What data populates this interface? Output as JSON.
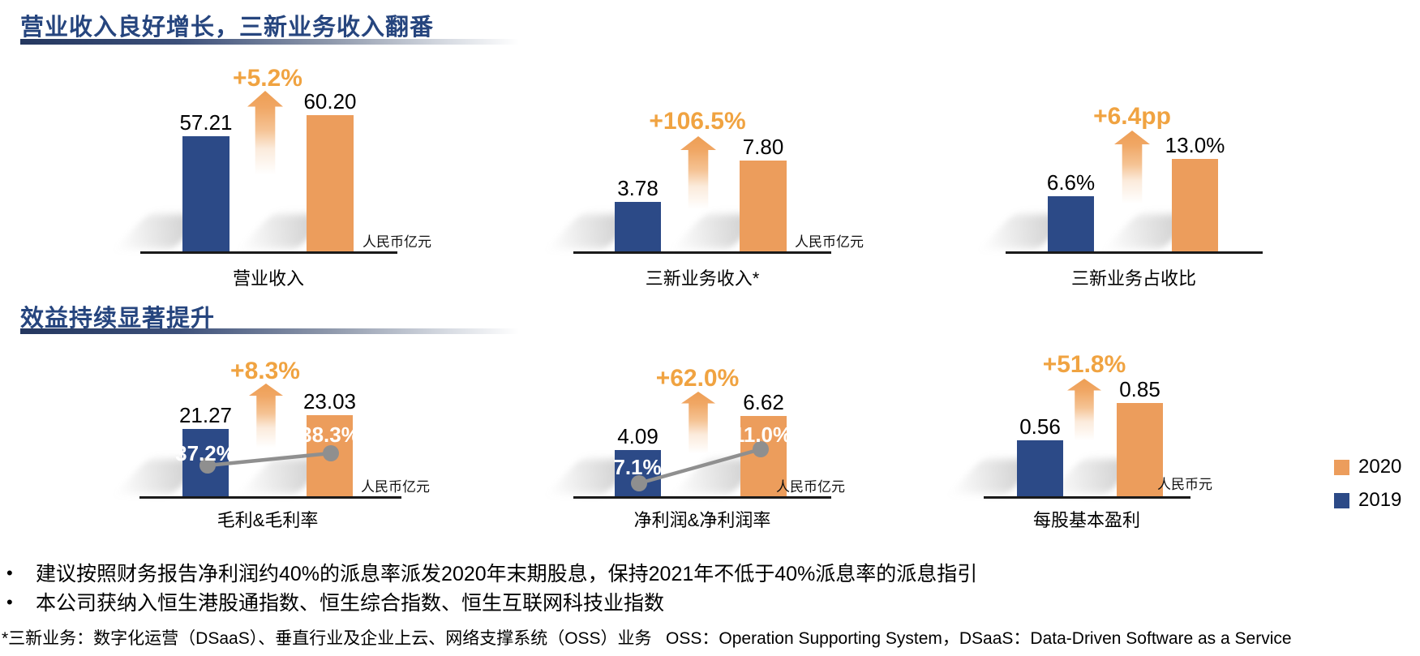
{
  "sections": [
    {
      "title": "营业收入良好增长，三新业务收入翻番"
    },
    {
      "title": "效益持续显著提升"
    }
  ],
  "bullet_char": "•",
  "bullets": [
    "建议按照财务报告净利润约40%的派息率派发2020年末期股息，保持2021年不低于40%派息率的派息指引",
    "本公司获纳入恒生港股通指数、恒生综合指数、恒生互联网科技业指数"
  ],
  "footnote": "*三新业务：数字化运营（DSaaS）、垂直行业及企业上云、网络支撑系统（OSS）业务   OSS：Operation Supporting System，DSaaS：Data-Driven Software as a Service",
  "legend": {
    "position": "right",
    "items": [
      {
        "label": "2020",
        "color": "#EC9D5C"
      },
      {
        "label": "2019",
        "color": "#2C4A87"
      }
    ]
  },
  "colors": {
    "navy": "#2C4A87",
    "orange": "#EC9D5C",
    "growth_orange": "#F0A341",
    "title_navy": "#26457E",
    "connector": "#8F8F8F",
    "axis": "#1a1a1a"
  },
  "chart_data": [
    {
      "type": "bar",
      "title": "营业收入",
      "unit": "人民币亿元",
      "growth_label": "+5.2%",
      "categories": [
        "2019",
        "2020"
      ],
      "values": [
        57.21,
        60.2
      ],
      "value_labels": [
        "57.21",
        "60.20"
      ],
      "legend_position": "none"
    },
    {
      "type": "bar",
      "title": "三新业务收入*",
      "unit": "人民币亿元",
      "growth_label": "+106.5%",
      "categories": [
        "2019",
        "2020"
      ],
      "values": [
        3.78,
        7.8
      ],
      "value_labels": [
        "3.78",
        "7.80"
      ]
    },
    {
      "type": "bar",
      "title": "三新业务占收比",
      "unit": "",
      "growth_label": "+6.4pp",
      "categories": [
        "2019",
        "2020"
      ],
      "values": [
        6.6,
        13.0
      ],
      "value_labels": [
        "6.6%",
        "13.0%"
      ]
    },
    {
      "type": "bar+line",
      "title": "毛利&毛利率",
      "unit": "人民币亿元",
      "growth_label": "+8.3%",
      "categories": [
        "2019",
        "2020"
      ],
      "values": [
        21.27,
        23.03
      ],
      "value_labels": [
        "21.27",
        "23.03"
      ],
      "rate_values": [
        37.2,
        38.3
      ],
      "rate_labels": [
        "37.2%",
        "38.3%"
      ]
    },
    {
      "type": "bar+line",
      "title": "净利润&净利润率",
      "unit": "人民币亿元",
      "growth_label": "+62.0%",
      "categories": [
        "2019",
        "2020"
      ],
      "values": [
        4.09,
        6.62
      ],
      "value_labels": [
        "4.09",
        "6.62"
      ],
      "rate_values": [
        7.1,
        11.0
      ],
      "rate_labels": [
        "7.1%",
        "11.0%"
      ]
    },
    {
      "type": "bar",
      "title": "每股基本盈利",
      "unit": "人民币元",
      "growth_label": "+51.8%",
      "categories": [
        "2019",
        "2020"
      ],
      "values": [
        0.56,
        0.85
      ],
      "value_labels": [
        "0.56",
        "0.85"
      ]
    }
  ]
}
